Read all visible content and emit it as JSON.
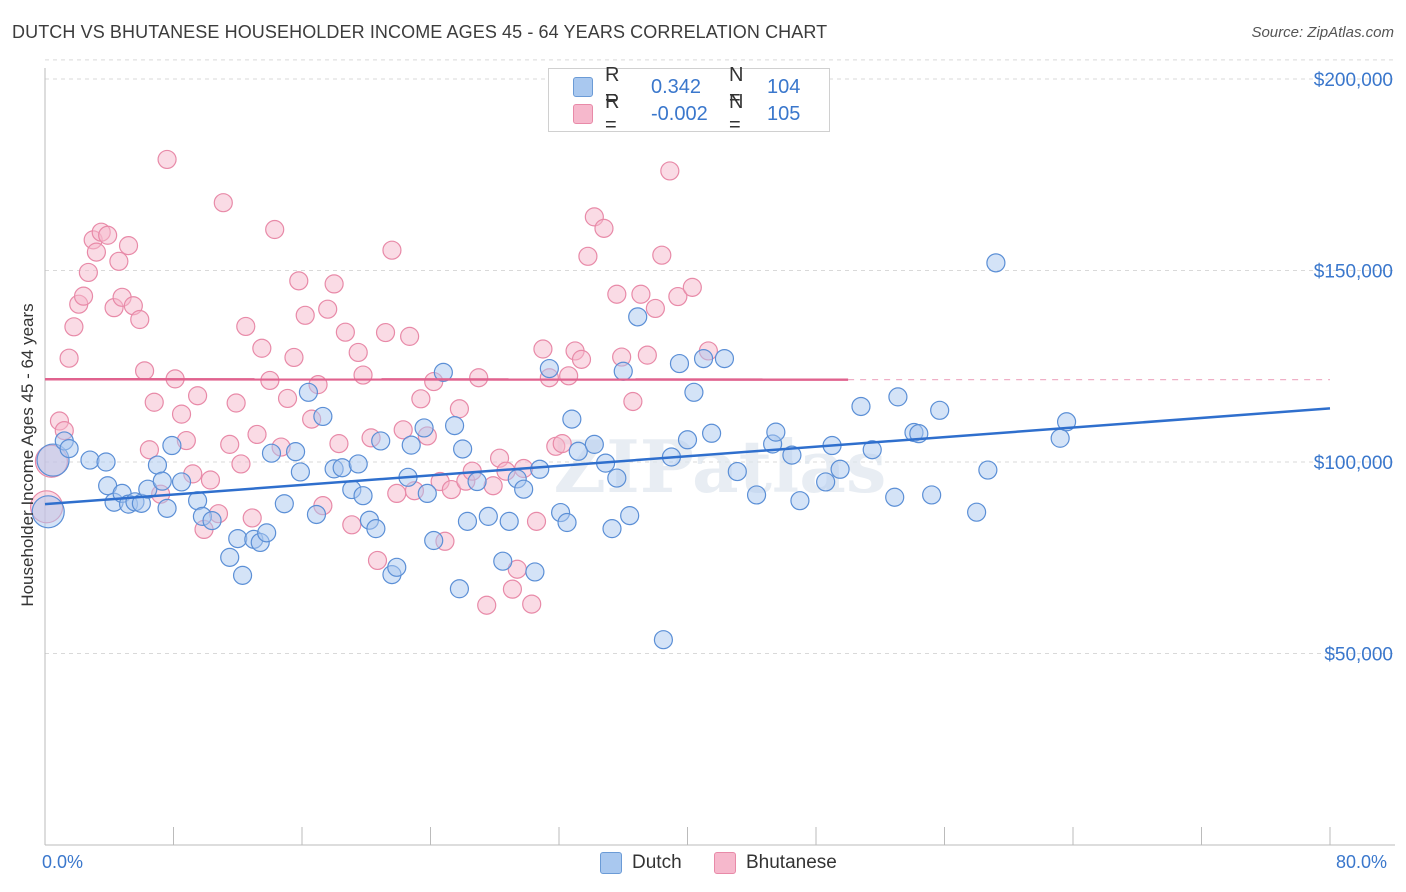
{
  "header": {
    "title": "DUTCH VS BHUTANESE HOUSEHOLDER INCOME AGES 45 - 64 YEARS CORRELATION CHART",
    "source": "Source: ZipAtlas.com"
  },
  "legend": {
    "rows": [
      {
        "r_label": "R =",
        "r_value": "0.342",
        "n_label": "N =",
        "n_value": "104",
        "color": "#a9c8ef",
        "border": "#6b9bd6"
      },
      {
        "r_label": "R =",
        "r_value": "-0.002",
        "n_label": "N =",
        "n_value": "105",
        "color": "#f6b8cc",
        "border": "#e88aa8"
      }
    ],
    "bottom": [
      "Dutch",
      "Bhutanese"
    ]
  },
  "watermark": "ZIPatlas",
  "colors": {
    "dutch_fill": "#a9c8ef",
    "dutch_stroke": "#5b8fd6",
    "dutch_line": "#2f6fcd",
    "bhutanese_fill": "#f6b8cc",
    "bhutanese_stroke": "#e88aa8",
    "bhutanese_line": "#e0628e",
    "tick_label": "#3a77cc",
    "grid": "#d9d9d9"
  },
  "chart_data": {
    "type": "scatter",
    "title": "DUTCH VS BHUTANESE HOUSEHOLDER INCOME AGES 45 - 64 YEARS CORRELATION CHART",
    "xlabel": "",
    "ylabel": "Householder Income Ages 45 - 64 years",
    "xlim": [
      0,
      80
    ],
    "ylim": [
      0,
      205000
    ],
    "x_tick_labels": [
      "0.0%",
      "80.0%"
    ],
    "y_ticks": [
      50000,
      100000,
      150000,
      200000
    ],
    "y_tick_labels": [
      "$50,000",
      "$100,000",
      "$150,000",
      "$200,000"
    ],
    "grid": true,
    "legend_position": "top-center",
    "series": [
      {
        "name": "Dutch",
        "R": 0.342,
        "N": 104,
        "trend": [
          [
            0,
            89000
          ],
          [
            80,
            114000
          ]
        ],
        "points": [
          [
            0.2,
            87000
          ],
          [
            0.5,
            100500
          ],
          [
            1.2,
            105500
          ],
          [
            1.5,
            103500
          ],
          [
            2.8,
            100500
          ],
          [
            3.8,
            100000
          ],
          [
            3.9,
            93800
          ],
          [
            4.3,
            89500
          ],
          [
            4.8,
            91800
          ],
          [
            5.2,
            89000
          ],
          [
            5.6,
            89600
          ],
          [
            6,
            89200
          ],
          [
            6.4,
            92900
          ],
          [
            7,
            99200
          ],
          [
            7.3,
            95000
          ],
          [
            7.6,
            87900
          ],
          [
            7.9,
            104300
          ],
          [
            8.5,
            94800
          ],
          [
            9.5,
            89900
          ],
          [
            9.8,
            85800
          ],
          [
            10.4,
            84700
          ],
          [
            11.5,
            75100
          ],
          [
            12,
            80000
          ],
          [
            12.3,
            70400
          ],
          [
            13,
            79800
          ],
          [
            13.4,
            79000
          ],
          [
            13.8,
            81500
          ],
          [
            14.1,
            102300
          ],
          [
            14.9,
            89100
          ],
          [
            15.6,
            102700
          ],
          [
            15.9,
            97400
          ],
          [
            16.4,
            118200
          ],
          [
            16.9,
            86300
          ],
          [
            17.3,
            111900
          ],
          [
            18,
            98200
          ],
          [
            18.5,
            98500
          ],
          [
            19.1,
            92800
          ],
          [
            19.5,
            99500
          ],
          [
            19.8,
            91200
          ],
          [
            20.2,
            84800
          ],
          [
            20.6,
            82600
          ],
          [
            20.9,
            105500
          ],
          [
            21.6,
            70600
          ],
          [
            21.9,
            72500
          ],
          [
            22.6,
            96000
          ],
          [
            22.8,
            104400
          ],
          [
            23.6,
            108900
          ],
          [
            23.8,
            91800
          ],
          [
            24.2,
            79500
          ],
          [
            24.8,
            123400
          ],
          [
            25.5,
            109500
          ],
          [
            25.8,
            66900
          ],
          [
            26,
            103400
          ],
          [
            26.3,
            84500
          ],
          [
            26.9,
            94900
          ],
          [
            27.6,
            85800
          ],
          [
            28.5,
            74100
          ],
          [
            28.9,
            84500
          ],
          [
            29.4,
            95600
          ],
          [
            29.8,
            92900
          ],
          [
            30.5,
            71300
          ],
          [
            30.8,
            98100
          ],
          [
            31.4,
            124400
          ],
          [
            32.1,
            86800
          ],
          [
            32.5,
            84200
          ],
          [
            32.8,
            111200
          ],
          [
            33.2,
            102800
          ],
          [
            34.2,
            104600
          ],
          [
            34.9,
            99700
          ],
          [
            35.3,
            82600
          ],
          [
            35.6,
            95800
          ],
          [
            36,
            123700
          ],
          [
            36.4,
            86000
          ],
          [
            36.9,
            137900
          ],
          [
            38.5,
            53600
          ],
          [
            39,
            101300
          ],
          [
            39.5,
            125700
          ],
          [
            40,
            105800
          ],
          [
            40.4,
            118200
          ],
          [
            41,
            127000
          ],
          [
            41.5,
            107500
          ],
          [
            42.3,
            127000
          ],
          [
            43.1,
            97500
          ],
          [
            44.3,
            91400
          ],
          [
            45.3,
            104700
          ],
          [
            45.5,
            107800
          ],
          [
            46.5,
            101800
          ],
          [
            47,
            89900
          ],
          [
            48.6,
            94800
          ],
          [
            49,
            104300
          ],
          [
            49.5,
            98100
          ],
          [
            50.8,
            114500
          ],
          [
            51.5,
            103200
          ],
          [
            52.9,
            90800
          ],
          [
            53.1,
            117000
          ],
          [
            54.1,
            107700
          ],
          [
            54.4,
            107400
          ],
          [
            55.2,
            91400
          ],
          [
            55.7,
            113500
          ],
          [
            58,
            86900
          ],
          [
            58.7,
            97900
          ],
          [
            59.2,
            152000
          ],
          [
            63.2,
            106200
          ],
          [
            63.6,
            110500
          ]
        ]
      },
      {
        "name": "Bhutanese",
        "R": -0.002,
        "N": 105,
        "trend": [
          [
            0,
            121600
          ],
          [
            50,
            121500
          ]
        ],
        "points": [
          [
            0.1,
            88300
          ],
          [
            0.4,
            100200
          ],
          [
            0.9,
            110700
          ],
          [
            1.2,
            108200
          ],
          [
            1.5,
            127100
          ],
          [
            1.8,
            135300
          ],
          [
            2.1,
            141200
          ],
          [
            2.4,
            143300
          ],
          [
            2.7,
            149500
          ],
          [
            3,
            158000
          ],
          [
            3.2,
            154800
          ],
          [
            3.5,
            160000
          ],
          [
            3.9,
            159200
          ],
          [
            4.3,
            140300
          ],
          [
            4.6,
            152400
          ],
          [
            4.8,
            143000
          ],
          [
            5.2,
            156500
          ],
          [
            5.5,
            140800
          ],
          [
            5.9,
            137200
          ],
          [
            6.2,
            123800
          ],
          [
            6.5,
            103200
          ],
          [
            6.8,
            115600
          ],
          [
            7.2,
            91600
          ],
          [
            7.6,
            179000
          ],
          [
            8.1,
            121700
          ],
          [
            8.5,
            112500
          ],
          [
            8.8,
            105600
          ],
          [
            9.2,
            96900
          ],
          [
            9.5,
            117300
          ],
          [
            9.9,
            82400
          ],
          [
            10.3,
            95300
          ],
          [
            10.8,
            86500
          ],
          [
            11.1,
            167700
          ],
          [
            11.5,
            104600
          ],
          [
            11.9,
            115400
          ],
          [
            12.2,
            99500
          ],
          [
            12.5,
            135400
          ],
          [
            12.9,
            85400
          ],
          [
            13.2,
            107200
          ],
          [
            13.5,
            129700
          ],
          [
            14,
            121300
          ],
          [
            14.3,
            160700
          ],
          [
            14.7,
            103900
          ],
          [
            15.1,
            116600
          ],
          [
            15.5,
            127300
          ],
          [
            15.8,
            147300
          ],
          [
            16.2,
            138300
          ],
          [
            16.6,
            111200
          ],
          [
            17,
            120200
          ],
          [
            17.3,
            88600
          ],
          [
            17.6,
            139900
          ],
          [
            18,
            146500
          ],
          [
            18.3,
            104800
          ],
          [
            18.7,
            133900
          ],
          [
            19.1,
            83600
          ],
          [
            19.5,
            128600
          ],
          [
            19.8,
            122700
          ],
          [
            20.3,
            106300
          ],
          [
            20.7,
            74300
          ],
          [
            21.2,
            133800
          ],
          [
            21.6,
            155300
          ],
          [
            21.9,
            91800
          ],
          [
            22.3,
            108400
          ],
          [
            22.7,
            132800
          ],
          [
            23,
            92500
          ],
          [
            23.4,
            116500
          ],
          [
            23.8,
            106800
          ],
          [
            24.2,
            121000
          ],
          [
            24.6,
            94900
          ],
          [
            24.9,
            79300
          ],
          [
            25.3,
            92800
          ],
          [
            25.8,
            113900
          ],
          [
            26.2,
            95000
          ],
          [
            26.6,
            97600
          ],
          [
            27,
            122000
          ],
          [
            27.5,
            62600
          ],
          [
            27.9,
            93800
          ],
          [
            28.3,
            101000
          ],
          [
            28.7,
            97600
          ],
          [
            29.1,
            66800
          ],
          [
            29.4,
            72000
          ],
          [
            29.8,
            98300
          ],
          [
            30.3,
            62900
          ],
          [
            30.6,
            84500
          ],
          [
            31,
            129500
          ],
          [
            31.4,
            122000
          ],
          [
            31.8,
            104100
          ],
          [
            32.2,
            104800
          ],
          [
            32.6,
            122500
          ],
          [
            33,
            129000
          ],
          [
            33.4,
            126800
          ],
          [
            33.8,
            153700
          ],
          [
            34.2,
            164000
          ],
          [
            34.8,
            161000
          ],
          [
            35.6,
            143800
          ],
          [
            35.9,
            127400
          ],
          [
            36.6,
            115800
          ],
          [
            37.1,
            143800
          ],
          [
            37.5,
            127900
          ],
          [
            38,
            140100
          ],
          [
            38.4,
            154000
          ],
          [
            38.9,
            176000
          ],
          [
            39.4,
            143200
          ],
          [
            40.3,
            145600
          ],
          [
            41.3,
            129000
          ]
        ]
      }
    ]
  }
}
